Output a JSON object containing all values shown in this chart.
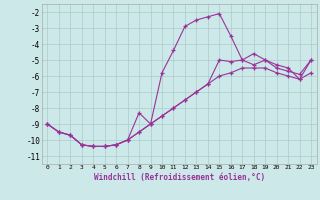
{
  "xlabel": "Windchill (Refroidissement éolien,°C)",
  "x_values": [
    0,
    1,
    2,
    3,
    4,
    5,
    6,
    7,
    8,
    9,
    10,
    11,
    12,
    13,
    14,
    15,
    16,
    17,
    18,
    19,
    20,
    21,
    22,
    23
  ],
  "line1": [
    -9.0,
    -9.5,
    -9.7,
    -10.3,
    -10.4,
    -10.4,
    -10.3,
    -10.0,
    -8.3,
    -9.0,
    -5.8,
    -4.4,
    -2.9,
    -2.5,
    -2.3,
    -2.1,
    -3.5,
    -5.0,
    -4.6,
    -5.0,
    -5.3,
    -5.5,
    -6.2,
    -5.0
  ],
  "line2": [
    -9.0,
    -9.5,
    -9.7,
    -10.3,
    -10.4,
    -10.4,
    -10.3,
    -10.0,
    -9.5,
    -9.0,
    -8.5,
    -8.0,
    -7.5,
    -7.0,
    -6.5,
    -5.0,
    -5.1,
    -5.0,
    -5.3,
    -5.0,
    -5.5,
    -5.7,
    -5.9,
    -5.0
  ],
  "line3": [
    -9.0,
    -9.5,
    -9.7,
    -10.3,
    -10.4,
    -10.4,
    -10.3,
    -10.0,
    -9.5,
    -9.0,
    -8.5,
    -8.0,
    -7.5,
    -7.0,
    -6.5,
    -6.0,
    -5.8,
    -5.5,
    -5.5,
    -5.5,
    -5.8,
    -6.0,
    -6.2,
    -5.8
  ],
  "line_color": "#993399",
  "bg_color": "#cce8e8",
  "grid_color": "#aacccc",
  "ylim": [
    -11.5,
    -1.5
  ],
  "yticks": [
    -11,
    -10,
    -9,
    -8,
    -7,
    -6,
    -5,
    -4,
    -3,
    -2
  ],
  "xlim": [
    -0.5,
    23.5
  ],
  "figsize": [
    3.2,
    2.0
  ],
  "dpi": 100
}
